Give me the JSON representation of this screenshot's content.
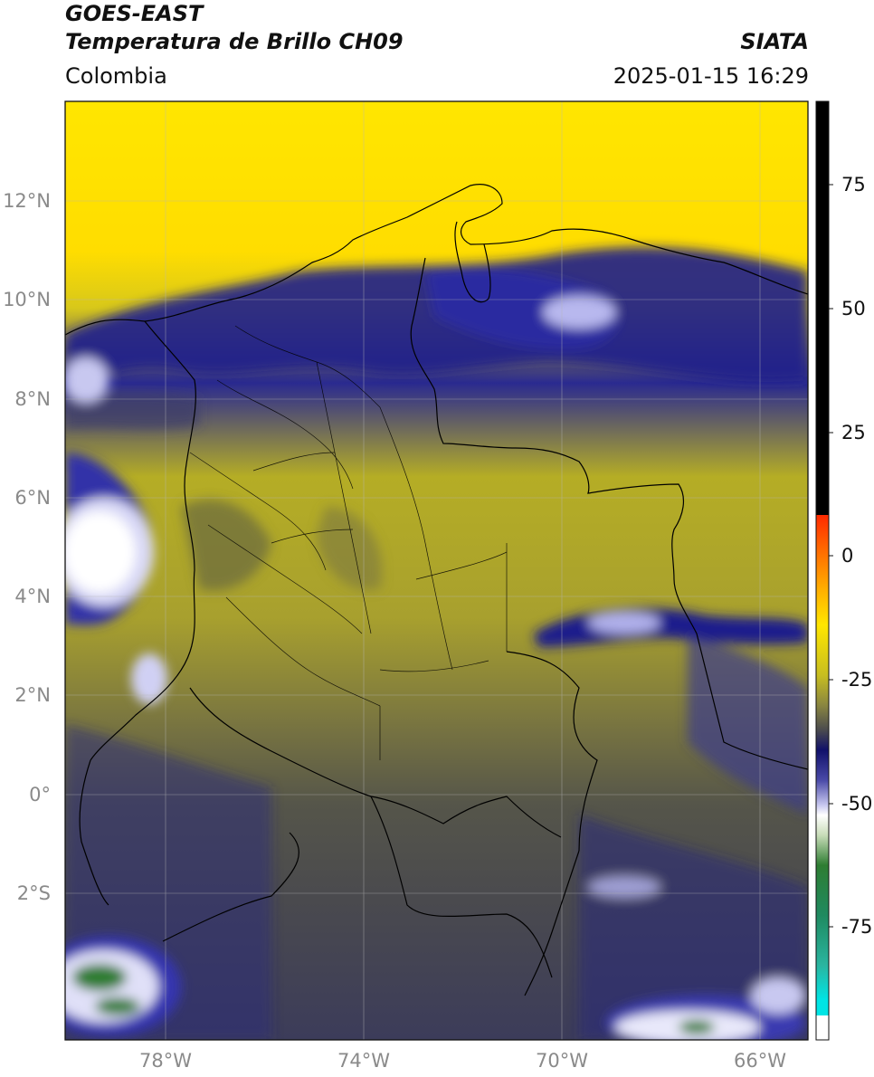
{
  "header": {
    "satellite": "GOES-EAST",
    "product": "Temperatura de Brillo CH09",
    "organization": "SIATA",
    "region": "Colombia",
    "datetime": "2025-01-15 16:29"
  },
  "map": {
    "lat_labels": [
      "12°N",
      "10°N",
      "8°N",
      "6°N",
      "4°N",
      "2°N",
      "0°",
      "2°S"
    ],
    "lon_labels": [
      "78°W",
      "74°W",
      "70°W",
      "66°W"
    ],
    "lat_values": [
      12,
      10,
      8,
      6,
      4,
      2,
      0,
      -2
    ],
    "lon_values": [
      -78,
      -74,
      -70,
      -66
    ],
    "extent": {
      "lon_min": -80.05,
      "lon_max": -65.05,
      "lat_min": -4.9,
      "lat_max": 14.1
    }
  },
  "colorbar": {
    "tick_labels": [
      "75",
      "50",
      "25",
      "0",
      "-25",
      "-50",
      "-75"
    ],
    "tick_values": [
      75,
      50,
      25,
      0,
      -25,
      -50,
      -75
    ],
    "range": [
      -100,
      90
    ],
    "colors": {
      "black": "#000000",
      "red": "#ff2a00",
      "orange": "#ff9900",
      "yellow": "#ffe600",
      "olive": "#a8a02e",
      "gray": "#4a4a4e",
      "navy": "#1a1a8a",
      "lavender": "#c8c8f0",
      "white": "#ffffff",
      "green": "#2e7d32",
      "teal": "#2ab5a0",
      "cyan": "#00e5e5"
    }
  }
}
